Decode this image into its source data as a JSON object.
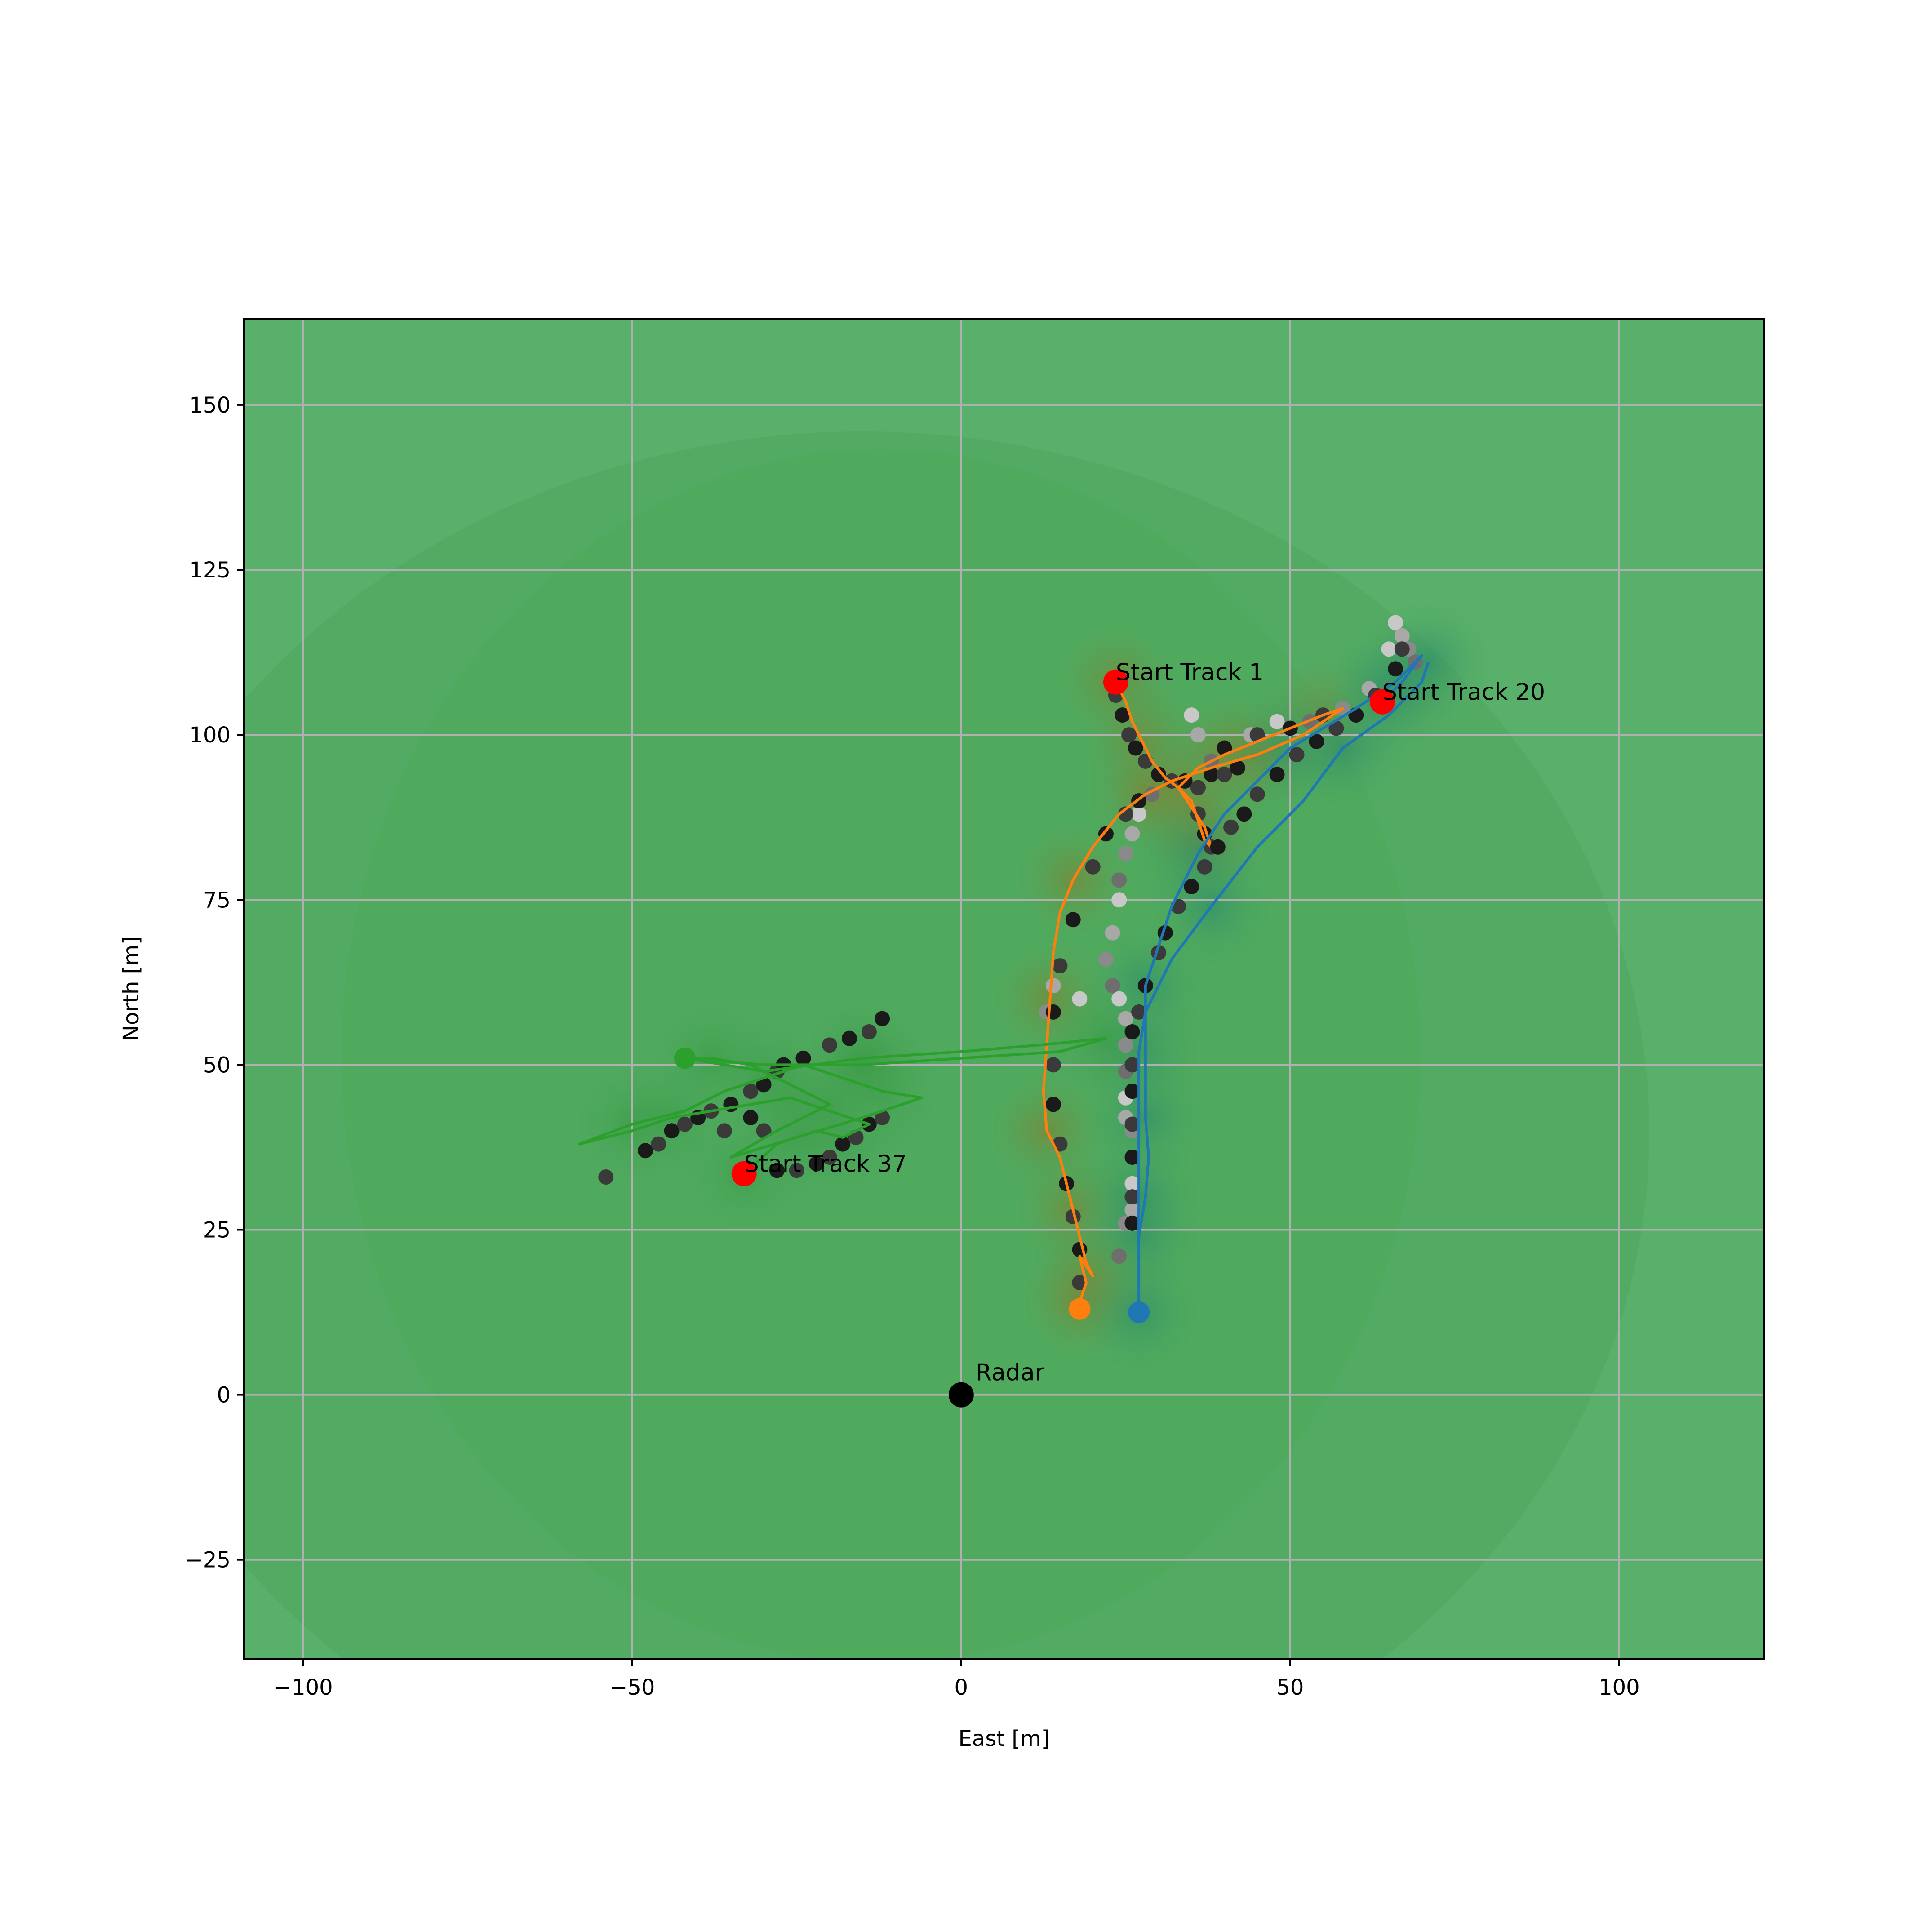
{
  "chart_data": {
    "type": "scatter",
    "title": "",
    "xlabel": "East [m]",
    "ylabel": "North [m]",
    "xlim": [
      -109,
      122
    ],
    "ylim": [
      -40,
      163
    ],
    "xticks": [
      -100,
      -50,
      0,
      50,
      100
    ],
    "yticks": [
      -25,
      0,
      25,
      50,
      75,
      100,
      125,
      150
    ],
    "xtick_labels": [
      "−100",
      "−50",
      "0",
      "50",
      "100"
    ],
    "ytick_labels": [
      "−25",
      "0",
      "25",
      "50",
      "75",
      "100",
      "125",
      "150"
    ],
    "grid": true,
    "background": "#59b06a",
    "radar": {
      "label": "Radar",
      "x": 0,
      "y": 0
    },
    "tracks": [
      {
        "color": "#ff7f0e",
        "start_label": "Start Track 1",
        "start": [
          23.5,
          108
        ],
        "end": [
          18,
          13
        ],
        "path": [
          [
            23.5,
            108
          ],
          [
            25,
            105
          ],
          [
            26,
            102
          ],
          [
            27.5,
            99
          ],
          [
            29,
            96
          ],
          [
            31,
            93.5
          ],
          [
            33,
            92
          ],
          [
            35,
            90
          ],
          [
            36,
            87
          ],
          [
            37,
            84
          ],
          [
            38,
            83
          ],
          [
            37,
            86
          ],
          [
            35,
            89
          ],
          [
            33,
            92
          ],
          [
            36,
            95
          ],
          [
            40,
            97
          ],
          [
            45,
            99
          ],
          [
            50,
            101
          ],
          [
            55,
            103
          ],
          [
            58,
            104
          ],
          [
            52,
            100
          ],
          [
            45,
            97
          ],
          [
            38,
            95
          ],
          [
            32,
            93
          ],
          [
            28,
            91
          ],
          [
            24,
            88
          ],
          [
            20,
            83
          ],
          [
            17,
            78
          ],
          [
            15,
            73
          ],
          [
            14,
            67
          ],
          [
            13.5,
            60
          ],
          [
            13,
            53
          ],
          [
            12.5,
            46
          ],
          [
            13,
            40
          ],
          [
            15,
            36
          ],
          [
            16,
            32
          ],
          [
            17,
            28
          ],
          [
            18,
            24
          ],
          [
            19,
            20
          ],
          [
            20,
            18
          ],
          [
            18,
            21
          ],
          [
            19,
            17
          ],
          [
            18,
            14
          ],
          [
            18,
            13
          ]
        ],
        "detections": [
          [
            23.5,
            106
          ],
          [
            24.5,
            103
          ],
          [
            25.5,
            100
          ],
          [
            26.5,
            98
          ],
          [
            28,
            96
          ],
          [
            30,
            94
          ],
          [
            32,
            93
          ],
          [
            34,
            93
          ],
          [
            36,
            92
          ],
          [
            38,
            94
          ],
          [
            40,
            94
          ],
          [
            42,
            95
          ],
          [
            36,
            88
          ],
          [
            37,
            85
          ],
          [
            38,
            83
          ],
          [
            40,
            98
          ],
          [
            45,
            100
          ],
          [
            50,
            101
          ],
          [
            55,
            103
          ],
          [
            27,
            90
          ],
          [
            25,
            88
          ],
          [
            22,
            85
          ],
          [
            20,
            80
          ],
          [
            17,
            72
          ],
          [
            15,
            65
          ],
          [
            14,
            58
          ],
          [
            14,
            50
          ],
          [
            14,
            44
          ],
          [
            15,
            38
          ],
          [
            16,
            32
          ],
          [
            17,
            27
          ],
          [
            18,
            22
          ],
          [
            18,
            17
          ]
        ]
      },
      {
        "color": "#1f77b4",
        "start_label": "Start Track 20",
        "start": [
          64,
          105
        ],
        "end": [
          27,
          12.5
        ],
        "path": [
          [
            64,
            105
          ],
          [
            67,
            108
          ],
          [
            70,
            112
          ],
          [
            66,
            108
          ],
          [
            60,
            104
          ],
          [
            55,
            101
          ],
          [
            50,
            98
          ],
          [
            45,
            93
          ],
          [
            40,
            88
          ],
          [
            36,
            82
          ],
          [
            32,
            74
          ],
          [
            30,
            68
          ],
          [
            28,
            62
          ],
          [
            28,
            55
          ],
          [
            28,
            48
          ],
          [
            28,
            42
          ],
          [
            28.5,
            36
          ],
          [
            28,
            30
          ],
          [
            27,
            24
          ],
          [
            27,
            18
          ],
          [
            27,
            14
          ],
          [
            27,
            12.5
          ],
          [
            27,
            16
          ],
          [
            27,
            22
          ],
          [
            27,
            30
          ],
          [
            27,
            38
          ],
          [
            27,
            45
          ],
          [
            27,
            52
          ],
          [
            28,
            58
          ],
          [
            32,
            66
          ],
          [
            38,
            74
          ],
          [
            45,
            83
          ],
          [
            52,
            90
          ],
          [
            58,
            98
          ],
          [
            65,
            103
          ],
          [
            70,
            108
          ],
          [
            71,
            111
          ]
        ],
        "detections": [
          [
            67,
            113
          ],
          [
            66,
            110
          ],
          [
            63,
            106
          ],
          [
            60,
            103
          ],
          [
            57,
            101
          ],
          [
            54,
            99
          ],
          [
            51,
            97
          ],
          [
            48,
            94
          ],
          [
            45,
            91
          ],
          [
            43,
            88
          ],
          [
            41,
            86
          ],
          [
            39,
            83
          ],
          [
            37,
            80
          ],
          [
            35,
            77
          ],
          [
            33,
            74
          ],
          [
            31,
            70
          ],
          [
            30,
            67
          ],
          [
            28,
            62
          ],
          [
            27,
            58
          ],
          [
            26,
            55
          ],
          [
            26,
            50
          ],
          [
            26,
            46
          ],
          [
            26,
            41
          ],
          [
            26,
            36
          ],
          [
            26,
            30
          ],
          [
            26,
            26
          ]
        ]
      },
      {
        "color": "#2ca02c",
        "start_label": "Start Track 37",
        "start": [
          -33,
          33.5
        ],
        "end": [
          -42,
          51
        ],
        "path": [
          [
            -33,
            33.5
          ],
          [
            -28,
            38
          ],
          [
            -22,
            40
          ],
          [
            -18,
            39
          ],
          [
            -14,
            41
          ],
          [
            -20,
            43
          ],
          [
            -26,
            45
          ],
          [
            -32,
            44
          ],
          [
            -38,
            43
          ],
          [
            -44,
            42
          ],
          [
            -50,
            40
          ],
          [
            -58,
            38
          ],
          [
            -50,
            41
          ],
          [
            -42,
            43
          ],
          [
            -36,
            46
          ],
          [
            -30,
            48
          ],
          [
            -24,
            50
          ],
          [
            -18,
            48
          ],
          [
            -12,
            46
          ],
          [
            -6,
            45
          ],
          [
            -15,
            42
          ],
          [
            -25,
            39
          ],
          [
            -35,
            36
          ],
          [
            -28,
            40
          ],
          [
            -20,
            44
          ],
          [
            -26,
            47
          ],
          [
            -32,
            50
          ],
          [
            -38,
            51
          ],
          [
            -42,
            51
          ],
          [
            -30,
            49
          ],
          [
            -15,
            51
          ],
          [
            0,
            52
          ],
          [
            12,
            53
          ],
          [
            22,
            54
          ],
          [
            15,
            52
          ],
          [
            0,
            51
          ],
          [
            -15,
            50
          ],
          [
            -30,
            50
          ],
          [
            -42,
            51
          ]
        ],
        "detections": [
          [
            -54,
            33
          ],
          [
            -48,
            37
          ],
          [
            -46,
            38
          ],
          [
            -44,
            40
          ],
          [
            -42,
            41
          ],
          [
            -40,
            42
          ],
          [
            -38,
            43
          ],
          [
            -35,
            44
          ],
          [
            -32,
            46
          ],
          [
            -30,
            47
          ],
          [
            -28,
            49
          ],
          [
            -27,
            50
          ],
          [
            -25,
            34
          ],
          [
            -22,
            35
          ],
          [
            -20,
            36
          ],
          [
            -18,
            38
          ],
          [
            -16,
            39
          ],
          [
            -14,
            41
          ],
          [
            -12,
            42
          ],
          [
            -28,
            34
          ],
          [
            -30,
            40
          ],
          [
            -32,
            42
          ],
          [
            -36,
            40
          ],
          [
            -24,
            51
          ],
          [
            -20,
            53
          ],
          [
            -17,
            54
          ],
          [
            -14,
            55
          ],
          [
            -12,
            57
          ]
        ]
      }
    ],
    "gray_detections": [
      [
        66,
        117
      ],
      [
        67,
        115
      ],
      [
        68,
        113
      ],
      [
        69,
        111
      ],
      [
        65,
        113
      ],
      [
        62,
        107
      ],
      [
        58,
        104
      ],
      [
        53,
        102
      ],
      [
        48,
        102
      ],
      [
        44,
        100
      ],
      [
        40,
        98
      ],
      [
        38,
        96
      ],
      [
        35,
        103
      ],
      [
        36,
        100
      ],
      [
        30,
        94
      ],
      [
        29,
        91
      ],
      [
        27,
        88
      ],
      [
        26,
        85
      ],
      [
        25,
        82
      ],
      [
        24,
        78
      ],
      [
        24,
        75
      ],
      [
        23,
        70
      ],
      [
        22,
        66
      ],
      [
        23,
        62
      ],
      [
        24,
        60
      ],
      [
        25,
        57
      ],
      [
        25,
        53
      ],
      [
        25,
        49
      ],
      [
        25,
        45
      ],
      [
        25,
        42
      ],
      [
        26,
        40
      ],
      [
        26,
        36
      ],
      [
        26,
        32
      ],
      [
        26,
        28
      ],
      [
        25,
        26
      ],
      [
        24,
        21
      ],
      [
        18,
        60
      ],
      [
        14,
        62
      ],
      [
        13,
        58
      ]
    ]
  }
}
